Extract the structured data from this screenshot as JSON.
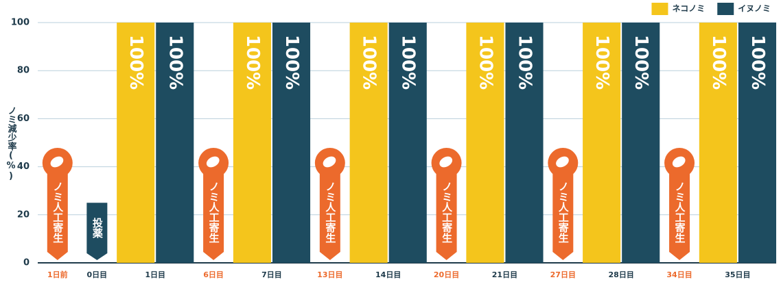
{
  "chart_data": {
    "type": "bar",
    "y_label": "ノミ減少率(%)",
    "categories": [
      "1日前",
      "0日目",
      "1日目",
      "6日目",
      "7日目",
      "13日目",
      "14日目",
      "20日目",
      "21日目",
      "27日目",
      "28日目",
      "34日目",
      "35日目"
    ],
    "series": [
      {
        "name": "ネコノミ",
        "color": "#f4c51c",
        "values": [
          null,
          null,
          100,
          null,
          100,
          null,
          100,
          null,
          100,
          null,
          100,
          null,
          100
        ],
        "value_labels": [
          null,
          null,
          "100%",
          null,
          "100%",
          null,
          "100%",
          null,
          "100%",
          null,
          "100%",
          null,
          "100%"
        ]
      },
      {
        "name": "イヌノミ",
        "color": "#1e4c60",
        "values": [
          null,
          null,
          100,
          null,
          100,
          null,
          100,
          null,
          100,
          null,
          100,
          null,
          100
        ],
        "value_labels": [
          null,
          null,
          "100%",
          null,
          "100%",
          null,
          "100%",
          null,
          "100%",
          null,
          "100%",
          null,
          "100%"
        ]
      }
    ],
    "annotations": [
      "ノミ人工寄生",
      "投薬",
      null,
      "ノミ人工寄生",
      null,
      "ノミ人工寄生",
      null,
      "ノミ人工寄生",
      null,
      "ノミ人工寄生",
      null,
      "ノミ人工寄生",
      null
    ],
    "annotation_colors": [
      "#ec6a2c",
      "#1e4c60",
      null,
      "#ec6a2c",
      null,
      "#ec6a2c",
      null,
      "#ec6a2c",
      null,
      "#ec6a2c",
      null,
      "#ec6a2c",
      null
    ],
    "ylim": [
      0,
      100
    ],
    "yticks": [
      0,
      20,
      40,
      60,
      80,
      100
    ],
    "grid": true,
    "legend": "top-right"
  }
}
